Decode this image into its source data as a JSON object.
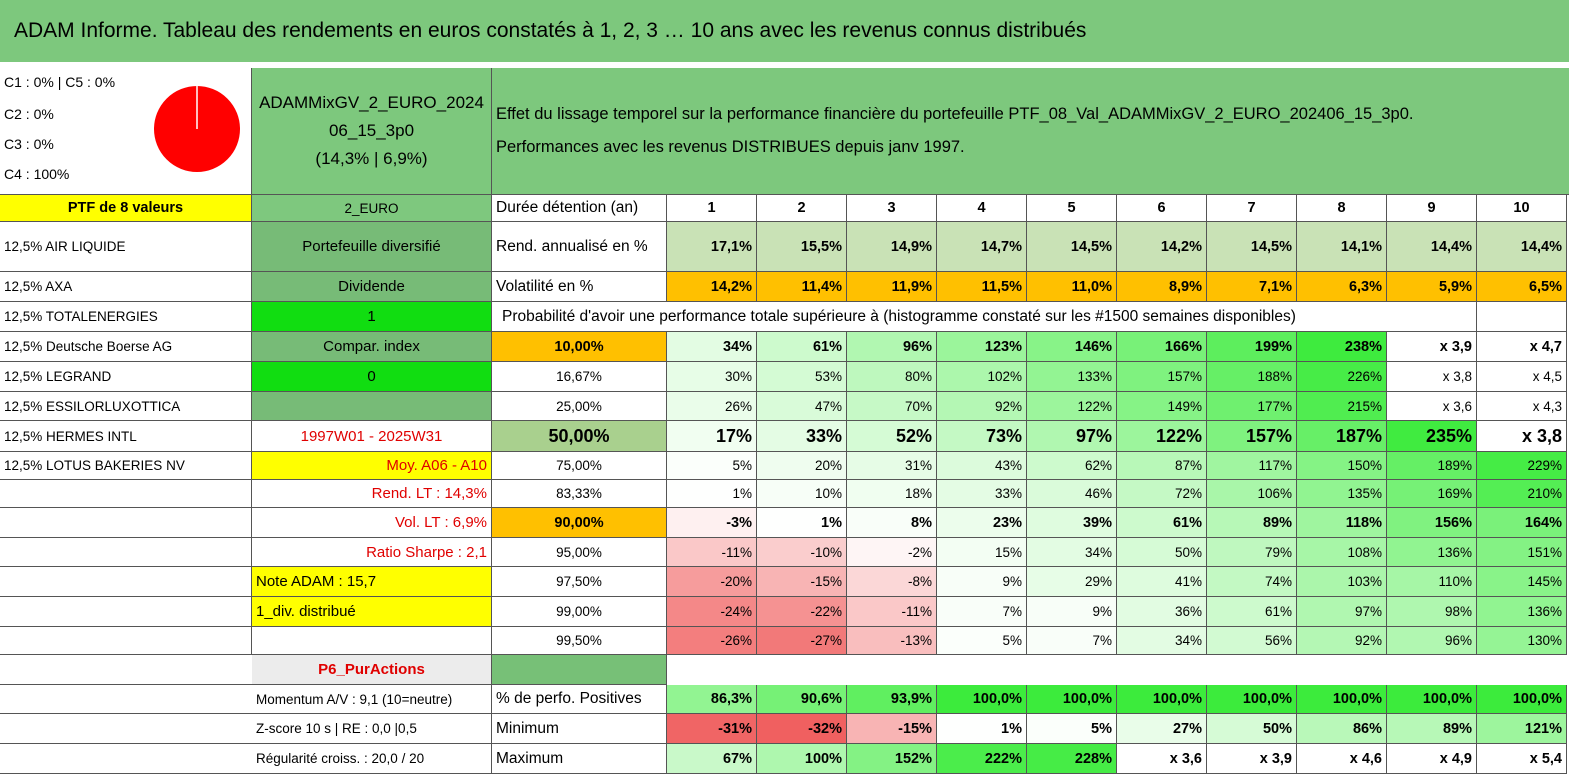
{
  "title": "ADAM Informe. Tableau des rendements en euros constatés à 1, 2, 3 … 10 ans avec les revenus connus distribués",
  "allocation": [
    "C1 : 0% | C5 : 0%",
    "C2 : 0%",
    "C3 : 0%",
    "C4 : 100%"
  ],
  "portfolio": {
    "name": "ADAMMixGV_2_EURO_202406_15_3p0",
    "stats": "(14,3% | 6,9%)"
  },
  "description": [
    "Effet du lissage temporel sur la performance financière du portefeuille PTF_08_Val_ADAMMixGV_2_EURO_202406_15_3p0.",
    "Performances avec les revenus DISTRIBUES depuis janv 1997."
  ],
  "rows": [
    {
      "a": "PTF de 8 valeurs",
      "b": "2_EURO",
      "label": "Durée détention (an)",
      "cells": [
        "1",
        "2",
        "3",
        "4",
        "5",
        "6",
        "7",
        "8",
        "9",
        "10"
      ]
    },
    {
      "a": "12,5% AIR LIQUIDE",
      "b": "Portefeuille diversifié",
      "label": "Rend. annualisé en %",
      "cells": [
        "17,1%",
        "15,5%",
        "14,9%",
        "14,7%",
        "14,5%",
        "14,2%",
        "14,5%",
        "14,1%",
        "14,4%",
        "14,4%"
      ]
    },
    {
      "a": "12,5% AXA",
      "b": "Dividende",
      "label": "Volatilité en %",
      "cells": [
        "14,2%",
        "11,4%",
        "11,9%",
        "11,5%",
        "11,0%",
        "8,9%",
        "7,1%",
        "6,3%",
        "5,9%",
        "6,5%"
      ]
    },
    {
      "a": "12,5% TOTALENERGIES",
      "b": "1",
      "label": "Probabilité d'avoir une performance totale supérieure à (histogramme constaté sur les #1500 semaines disponibles)"
    },
    {
      "a": "12,5% Deutsche Boerse AG",
      "b": "Compar. index",
      "label": "10,00%",
      "cells": [
        "34%",
        "61%",
        "96%",
        "123%",
        "146%",
        "166%",
        "199%",
        "238%",
        "x 3,9",
        "x 4,7"
      ]
    },
    {
      "a": "12,5% LEGRAND",
      "b": "0",
      "label": "16,67%",
      "cells": [
        "30%",
        "53%",
        "80%",
        "102%",
        "133%",
        "157%",
        "188%",
        "226%",
        "x 3,8",
        "x 4,5"
      ]
    },
    {
      "a": "12,5% ESSILORLUXOTTICA",
      "label": "25,00%",
      "cells": [
        "26%",
        "47%",
        "70%",
        "92%",
        "122%",
        "149%",
        "177%",
        "215%",
        "x 3,6",
        "x 4,3"
      ]
    },
    {
      "a": "12,5% HERMES INTL",
      "b": "1997W01 - 2025W31",
      "label": "50,00%",
      "cells": [
        "17%",
        "33%",
        "52%",
        "73%",
        "97%",
        "122%",
        "157%",
        "187%",
        "235%",
        "x 3,8"
      ]
    },
    {
      "a": "12,5% LOTUS BAKERIES NV",
      "b": "Moy. A06 - A10",
      "label": "75,00%",
      "cells": [
        "5%",
        "20%",
        "31%",
        "43%",
        "62%",
        "87%",
        "117%",
        "150%",
        "189%",
        "229%"
      ]
    },
    {
      "b": "Rend. LT : 14,3%",
      "label": "83,33%",
      "cells": [
        "1%",
        "10%",
        "18%",
        "33%",
        "46%",
        "72%",
        "106%",
        "135%",
        "169%",
        "210%"
      ]
    },
    {
      "b": "Vol. LT : 6,9%",
      "label": "90,00%",
      "cells": [
        "-3%",
        "1%",
        "8%",
        "23%",
        "39%",
        "61%",
        "89%",
        "118%",
        "156%",
        "164%"
      ]
    },
    {
      "b": "Ratio Sharpe : 2,1",
      "label": "95,00%",
      "cells": [
        "-11%",
        "-10%",
        "-2%",
        "15%",
        "34%",
        "50%",
        "79%",
        "108%",
        "136%",
        "151%"
      ]
    },
    {
      "b": "Note ADAM : 15,7",
      "label": "97,50%",
      "cells": [
        "-20%",
        "-15%",
        "-8%",
        "9%",
        "29%",
        "41%",
        "74%",
        "103%",
        "110%",
        "145%"
      ]
    },
    {
      "b": "1_div. distribué",
      "label": "99,00%",
      "cells": [
        "-24%",
        "-22%",
        "-11%",
        "7%",
        "9%",
        "36%",
        "61%",
        "97%",
        "98%",
        "136%"
      ]
    },
    {
      "label": "99,50%",
      "cells": [
        "-26%",
        "-27%",
        "-13%",
        "5%",
        "7%",
        "34%",
        "56%",
        "92%",
        "96%",
        "130%"
      ]
    },
    {
      "b": "P6_PurActions"
    },
    {
      "b": "Momentum A/V : 9,1 (10=neutre)",
      "label": "% de perfo. Positives",
      "cells": [
        "86,3%",
        "90,6%",
        "93,9%",
        "100,0%",
        "100,0%",
        "100,0%",
        "100,0%",
        "100,0%",
        "100,0%",
        "100,0%"
      ]
    },
    {
      "b": "Z-score 10 s | RE : 0,0 |0,5",
      "label": "Minimum",
      "cells": [
        "-31%",
        "-32%",
        "-15%",
        "1%",
        "5%",
        "27%",
        "50%",
        "86%",
        "89%",
        "121%"
      ]
    },
    {
      "b": "Régularité croiss. : 20,0 / 20",
      "label": "Maximum",
      "cells": [
        "67%",
        "100%",
        "152%",
        "222%",
        "228%",
        "x 3,6",
        "x 3,9",
        "x 4,6",
        "x 4,9",
        "x 5,4"
      ]
    }
  ]
}
